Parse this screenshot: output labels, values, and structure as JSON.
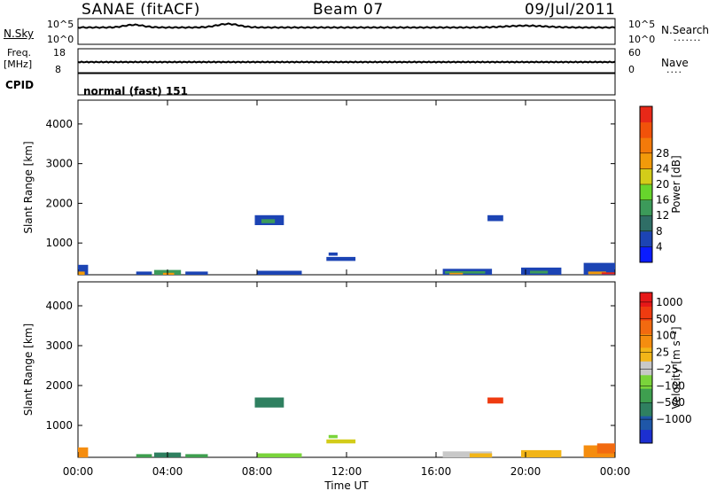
{
  "header": {
    "station": "SANAE (fitACF)",
    "beam": "Beam 07",
    "date": "09/Jul/2011"
  },
  "noise_panel": {
    "left_label": "N.Sky",
    "left_ticks": [
      "10^5",
      "10^0"
    ],
    "right_ticks": [
      "10^5",
      "10^0"
    ],
    "right_label": "N.Search",
    "right_legend": "·······"
  },
  "freq_panel": {
    "left_label_1": "Freq.",
    "left_label_2": "[MHz]",
    "left_ticks": [
      "18",
      "8"
    ],
    "right_ticks": [
      "60",
      "0"
    ],
    "right_label": "Nave",
    "right_legend": "····",
    "cpid_label": "CPID",
    "cpid_value": "normal (fast) 151"
  },
  "x_axis": {
    "label": "Time UT",
    "ticks": [
      "00:00",
      "04:00",
      "08:00",
      "12:00",
      "16:00",
      "20:00",
      "00:00"
    ]
  },
  "chart_data": [
    {
      "type": "heatmap",
      "title": "",
      "ylabel": "Slant Range [km]",
      "yticks": [
        "1000",
        "2000",
        "3000",
        "4000"
      ],
      "ylim": [
        200,
        4600
      ],
      "xlim": [
        0,
        24
      ],
      "colorbar": {
        "label": "Power [dB]",
        "ticks": [
          "4",
          "8",
          "12",
          "16",
          "20",
          "24",
          "28"
        ],
        "colors": [
          "#0a1cff",
          "#1c44b4",
          "#2f6e66",
          "#3c9a5a",
          "#67d52c",
          "#d3cc19",
          "#f29a0a",
          "#f37a0a",
          "#f1520a",
          "#e82818"
        ]
      },
      "regions": [
        {
          "t0": 0.0,
          "t1": 0.45,
          "r0": 200,
          "r1": 450,
          "color": "#1c44b4"
        },
        {
          "t0": 0.0,
          "t1": 0.3,
          "r0": 200,
          "r1": 280,
          "color": "#f29a0a"
        },
        {
          "t0": 2.6,
          "t1": 3.3,
          "r0": 200,
          "r1": 280,
          "color": "#1c44b4"
        },
        {
          "t0": 3.4,
          "t1": 4.6,
          "r0": 200,
          "r1": 320,
          "color": "#3c9a5a"
        },
        {
          "t0": 3.8,
          "t1": 4.3,
          "r0": 200,
          "r1": 250,
          "color": "#f29a0a"
        },
        {
          "t0": 4.8,
          "t1": 5.8,
          "r0": 200,
          "r1": 280,
          "color": "#1c44b4"
        },
        {
          "t0": 7.9,
          "t1": 9.2,
          "r0": 1450,
          "r1": 1700,
          "color": "#1c44b4"
        },
        {
          "t0": 8.2,
          "t1": 8.8,
          "r0": 1500,
          "r1": 1600,
          "color": "#3c9a5a"
        },
        {
          "t0": 8.0,
          "t1": 10.0,
          "r0": 200,
          "r1": 300,
          "color": "#1c44b4"
        },
        {
          "t0": 11.1,
          "t1": 12.4,
          "r0": 550,
          "r1": 650,
          "color": "#1c44b4"
        },
        {
          "t0": 11.2,
          "t1": 11.6,
          "r0": 680,
          "r1": 760,
          "color": "#1c44b4"
        },
        {
          "t0": 16.3,
          "t1": 18.5,
          "r0": 200,
          "r1": 350,
          "color": "#1c44b4"
        },
        {
          "t0": 16.4,
          "t1": 18.2,
          "r0": 230,
          "r1": 290,
          "color": "#3c9a5a"
        },
        {
          "t0": 16.6,
          "t1": 17.2,
          "r0": 210,
          "r1": 250,
          "color": "#f29a0a"
        },
        {
          "t0": 18.3,
          "t1": 19.0,
          "r0": 1550,
          "r1": 1700,
          "color": "#1c44b4"
        },
        {
          "t0": 19.8,
          "t1": 21.6,
          "r0": 200,
          "r1": 380,
          "color": "#1c44b4"
        },
        {
          "t0": 20.2,
          "t1": 21.0,
          "r0": 230,
          "r1": 300,
          "color": "#3c9a5a"
        },
        {
          "t0": 22.6,
          "t1": 24.0,
          "r0": 200,
          "r1": 500,
          "color": "#1c44b4"
        },
        {
          "t0": 22.8,
          "t1": 23.6,
          "r0": 210,
          "r1": 280,
          "color": "#f29a0a"
        },
        {
          "t0": 23.4,
          "t1": 24.0,
          "r0": 210,
          "r1": 260,
          "color": "#e82818"
        }
      ]
    },
    {
      "type": "heatmap",
      "title": "",
      "ylabel": "Slant Range [km]",
      "yticks": [
        "1000",
        "2000",
        "3000",
        "4000"
      ],
      "ylim": [
        200,
        4600
      ],
      "xlim": [
        0,
        24
      ],
      "colorbar": {
        "label": "Velocity [m s⁻¹]",
        "ticks": [
          "1000",
          "500",
          "100",
          "25",
          "−25",
          "−100",
          "−500",
          "−1000"
        ],
        "colors": [
          "#1c2fd0",
          "#1f57a8",
          "#2f8060",
          "#3e9f4f",
          "#7ad43b",
          "#c8c8c8",
          "#f2b518",
          "#f58d0f",
          "#f26a10",
          "#ef3b10",
          "#e61818"
        ]
      },
      "regions": [
        {
          "t0": 0.0,
          "t1": 0.45,
          "r0": 200,
          "r1": 450,
          "color": "#f58d0f"
        },
        {
          "t0": 2.6,
          "t1": 3.3,
          "r0": 200,
          "r1": 280,
          "color": "#3e9f4f"
        },
        {
          "t0": 3.4,
          "t1": 4.6,
          "r0": 200,
          "r1": 320,
          "color": "#2f8060"
        },
        {
          "t0": 4.8,
          "t1": 5.8,
          "r0": 200,
          "r1": 280,
          "color": "#3e9f4f"
        },
        {
          "t0": 7.9,
          "t1": 9.2,
          "r0": 1450,
          "r1": 1700,
          "color": "#2f8060"
        },
        {
          "t0": 8.0,
          "t1": 10.0,
          "r0": 200,
          "r1": 300,
          "color": "#7ad43b"
        },
        {
          "t0": 11.1,
          "t1": 12.4,
          "r0": 550,
          "r1": 650,
          "color": "#d3cc19"
        },
        {
          "t0": 11.2,
          "t1": 11.6,
          "r0": 680,
          "r1": 760,
          "color": "#7ad43b"
        },
        {
          "t0": 16.3,
          "t1": 18.5,
          "r0": 200,
          "r1": 350,
          "color": "#c8c8c8"
        },
        {
          "t0": 17.5,
          "t1": 18.5,
          "r0": 200,
          "r1": 300,
          "color": "#f2b518"
        },
        {
          "t0": 18.3,
          "t1": 19.0,
          "r0": 1550,
          "r1": 1700,
          "color": "#ef3b10"
        },
        {
          "t0": 19.8,
          "t1": 21.6,
          "r0": 200,
          "r1": 380,
          "color": "#f2b518"
        },
        {
          "t0": 22.6,
          "t1": 24.0,
          "r0": 200,
          "r1": 500,
          "color": "#f58d0f"
        },
        {
          "t0": 23.2,
          "t1": 24.0,
          "r0": 300,
          "r1": 550,
          "color": "#f26a10"
        }
      ]
    }
  ]
}
